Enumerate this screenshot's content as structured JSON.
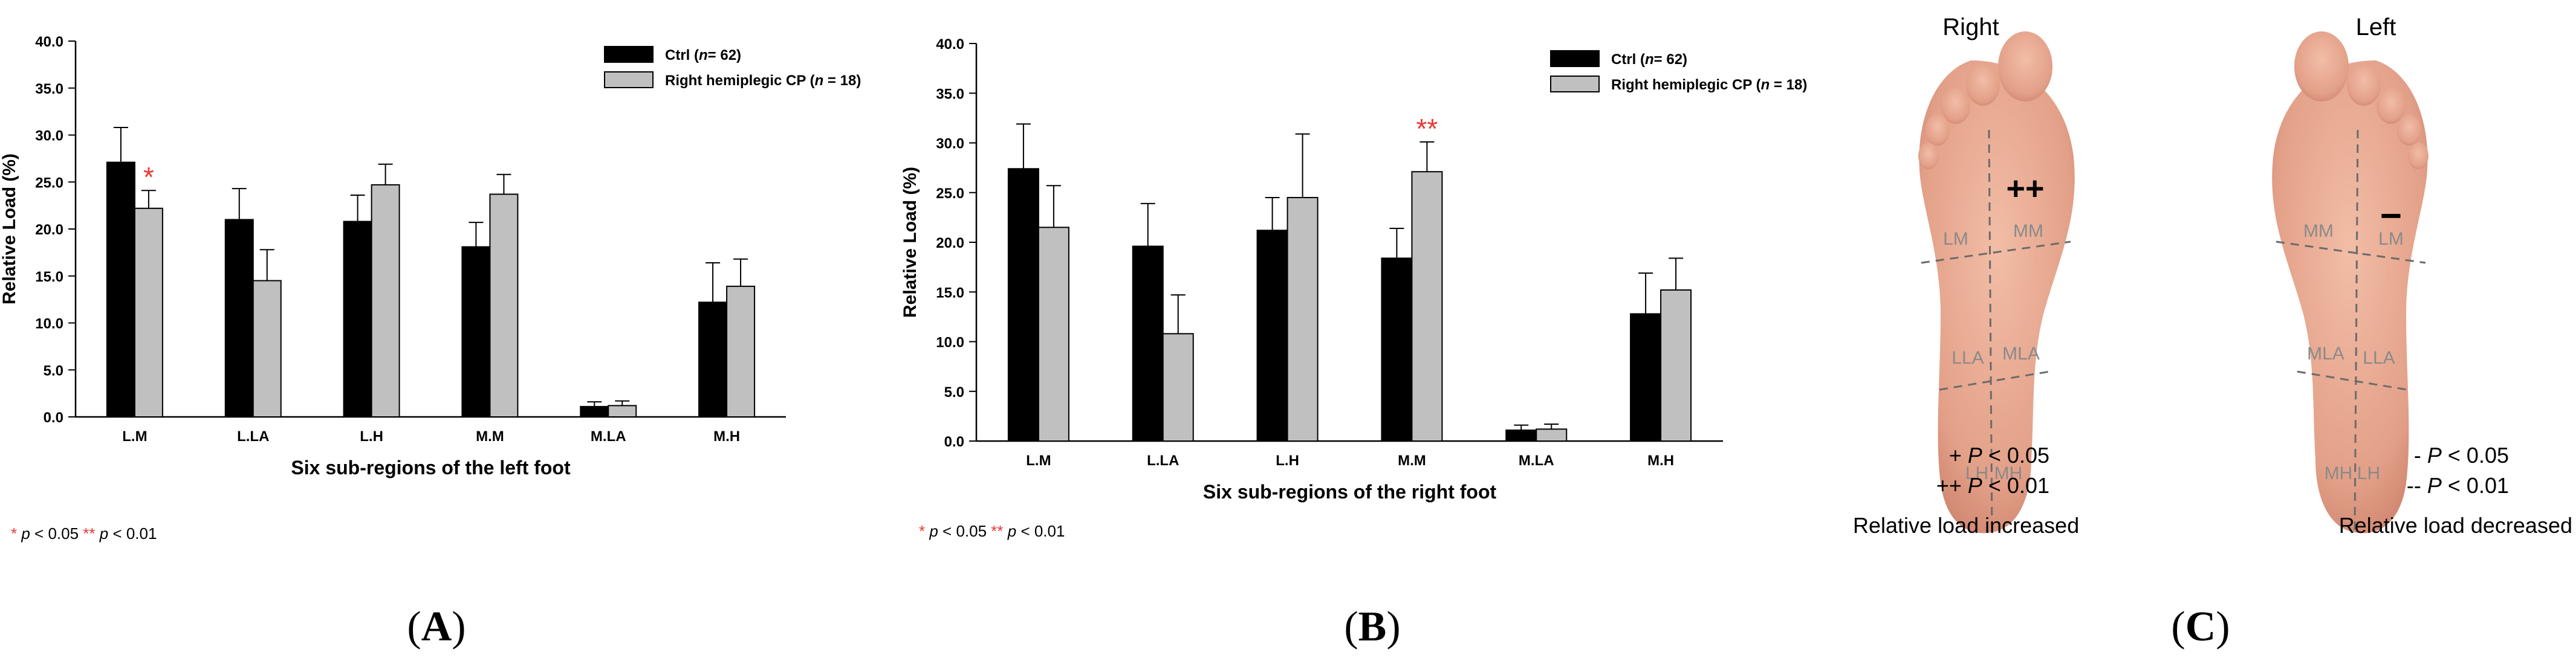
{
  "chart_data": [
    {
      "type": "bar",
      "panel": "A",
      "ylabel": "Relative Load (%)",
      "xlabel": "Six sub-regions of the left foot",
      "ylim": [
        0,
        40
      ],
      "ytick_step": 5,
      "categories": [
        "L.M",
        "L.LA",
        "L.H",
        "M.M",
        "M.LA",
        "M.H"
      ],
      "series": [
        {
          "name": "Ctrl (n= 62)",
          "legend_text": "Ctrl (",
          "legend_n": "n",
          "legend_tail": "= 62)",
          "color": "#000000",
          "values": [
            27.1,
            21.0,
            20.8,
            18.1,
            1.1,
            12.2
          ],
          "errors": [
            3.7,
            3.3,
            2.8,
            2.6,
            0.5,
            4.2
          ]
        },
        {
          "name": "Right hemiplegic CP (n = 18)",
          "legend_text": "Right hemiplegic CP (",
          "legend_n": "n",
          "legend_tail": " = 18)",
          "color": "#c0c0c0",
          "values": [
            22.2,
            14.5,
            24.7,
            23.7,
            1.2,
            13.9
          ],
          "errors": [
            1.9,
            3.3,
            2.2,
            2.1,
            0.5,
            2.9
          ]
        }
      ],
      "annotations": [
        {
          "category": "L.M",
          "series": 1,
          "text": "*"
        }
      ],
      "footnote": {
        "s1": "*",
        "t1": " p",
        "r1": " < 0.05  ",
        "s2": "**",
        "t2": " p",
        "r2": " < 0.01"
      },
      "panel_label": {
        "open": "(",
        "letter": "A",
        "close": ")"
      }
    },
    {
      "type": "bar",
      "panel": "B",
      "ylabel": "Relative Load (%)",
      "xlabel": "Six sub-regions of the right foot",
      "ylim": [
        0,
        40
      ],
      "ytick_step": 5,
      "categories": [
        "L.M",
        "L.LA",
        "L.H",
        "M.M",
        "M.LA",
        "M.H"
      ],
      "series": [
        {
          "name": "Ctrl (n= 62)",
          "legend_text": "Ctrl (",
          "legend_n": "n",
          "legend_tail": "= 62)",
          "color": "#000000",
          "values": [
            27.4,
            19.6,
            21.2,
            18.4,
            1.1,
            12.8
          ],
          "errors": [
            4.5,
            4.3,
            3.3,
            3.0,
            0.5,
            4.1
          ]
        },
        {
          "name": "Right hemiplegic CP (n = 18)",
          "legend_text": "Right hemiplegic CP (",
          "legend_n": "n",
          "legend_tail": " = 18)",
          "color": "#c0c0c0",
          "values": [
            21.5,
            10.8,
            24.5,
            27.1,
            1.2,
            15.2
          ],
          "errors": [
            4.2,
            3.9,
            6.4,
            3.0,
            0.5,
            3.2
          ]
        }
      ],
      "annotations": [
        {
          "category": "M.M",
          "series": 1,
          "text": "**"
        }
      ],
      "footnote": {
        "s1": "*",
        "t1": " p",
        "r1": " < 0.05  ",
        "s2": "**",
        "t2": " p",
        "r2": " < 0.01"
      },
      "panel_label": {
        "open": "(",
        "letter": "B",
        "close": ")"
      }
    }
  ],
  "panel_c": {
    "right_title": "Right",
    "left_title": "Left",
    "right_regions": {
      "lm": "LM",
      "mm": "MM",
      "lla": "LLA",
      "mla": "MLA",
      "lh": "LH",
      "mh": "MH"
    },
    "left_regions": {
      "mm": "MM",
      "lm": "LM",
      "mla": "MLA",
      "lla": "LLA",
      "mh": "MH",
      "lh": "LH"
    },
    "right_marker": "++",
    "left_marker": "−",
    "right_legend": {
      "l1s": "+ ",
      "l1p": "P",
      "l1r": " < 0.05",
      "l2s": "++ ",
      "l2p": "P",
      "l2r": " < 0.01",
      "caption": "Relative load increased"
    },
    "left_legend": {
      "l1s": "- ",
      "l1p": "P",
      "l1r": " < 0.05",
      "l2s": "-- ",
      "l2p": "P",
      "l2r": " < 0.01",
      "caption": "Relative load decreased"
    },
    "skin_color": "#e6a48c",
    "panel_label": {
      "open": "(",
      "letter": "C",
      "close": ")"
    }
  },
  "colors": {
    "sig": "#e53935",
    "axis": "#000000",
    "region_text": "#8a8a8a"
  }
}
